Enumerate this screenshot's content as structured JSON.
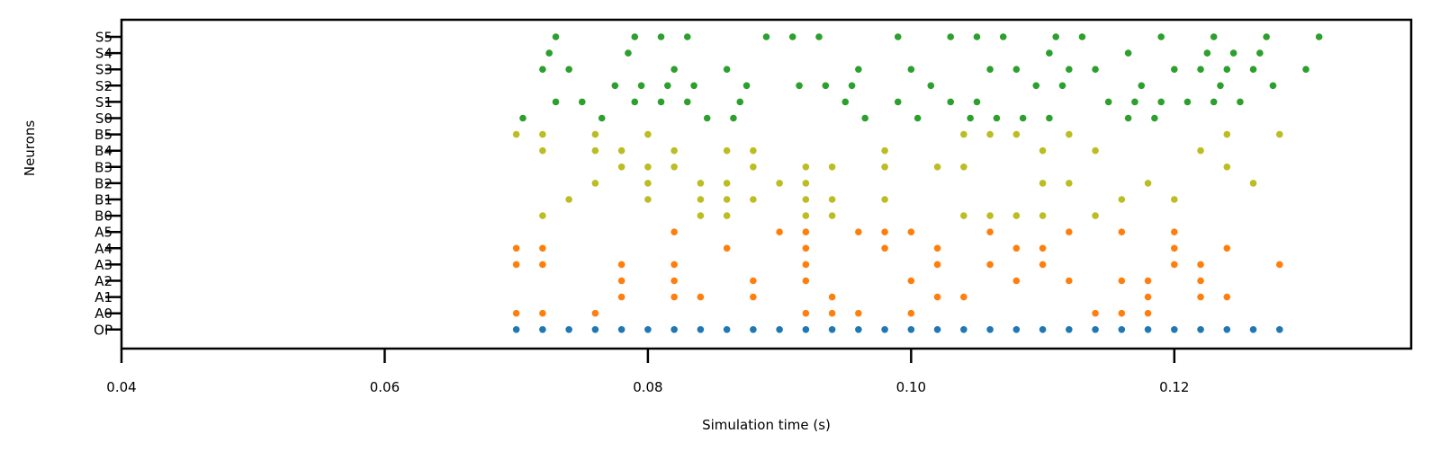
{
  "chart_data": {
    "type": "scatter",
    "title": "",
    "xlabel": "Simulation time (s)",
    "ylabel": "Neurons",
    "xlim": [
      0.04,
      0.138
    ],
    "xticks": [
      0.04,
      0.06,
      0.08,
      0.1,
      0.12
    ],
    "xtick_labels": [
      "0.04",
      "0.06",
      "0.08",
      "0.10",
      "0.12"
    ],
    "grid": false,
    "categories": [
      "OP",
      "A0",
      "A1",
      "A2",
      "A3",
      "A4",
      "A5",
      "B0",
      "B1",
      "B2",
      "B3",
      "B4",
      "B5",
      "S0",
      "S1",
      "S2",
      "S3",
      "S4",
      "S5"
    ],
    "colors": {
      "OP": "#1f77b4",
      "A": "#ff7f0e",
      "B": "#bcbd22",
      "S": "#2ca02c"
    },
    "spikes": {
      "OP": [
        0.07,
        0.072,
        0.074,
        0.076,
        0.078,
        0.08,
        0.082,
        0.084,
        0.086,
        0.088,
        0.09,
        0.092,
        0.094,
        0.096,
        0.098,
        0.1,
        0.102,
        0.104,
        0.106,
        0.108,
        0.11,
        0.112,
        0.114,
        0.116,
        0.118,
        0.12,
        0.122,
        0.124,
        0.126,
        0.128
      ],
      "A0": [
        0.07,
        0.072,
        0.076,
        0.092,
        0.094,
        0.096,
        0.1,
        0.114,
        0.116,
        0.118
      ],
      "A1": [
        0.078,
        0.082,
        0.084,
        0.088,
        0.094,
        0.102,
        0.104,
        0.118,
        0.122,
        0.124
      ],
      "A2": [
        0.078,
        0.082,
        0.088,
        0.092,
        0.1,
        0.108,
        0.112,
        0.116,
        0.118,
        0.122
      ],
      "A3": [
        0.07,
        0.072,
        0.078,
        0.082,
        0.092,
        0.102,
        0.106,
        0.11,
        0.12,
        0.122,
        0.128
      ],
      "A4": [
        0.07,
        0.072,
        0.086,
        0.092,
        0.098,
        0.102,
        0.108,
        0.11,
        0.12,
        0.124
      ],
      "A5": [
        0.082,
        0.09,
        0.092,
        0.096,
        0.098,
        0.1,
        0.106,
        0.112,
        0.116,
        0.12
      ],
      "B0": [
        0.072,
        0.084,
        0.086,
        0.092,
        0.094,
        0.104,
        0.106,
        0.108,
        0.11,
        0.114
      ],
      "B1": [
        0.074,
        0.08,
        0.084,
        0.086,
        0.088,
        0.092,
        0.094,
        0.098,
        0.116,
        0.12
      ],
      "B2": [
        0.076,
        0.08,
        0.084,
        0.086,
        0.09,
        0.092,
        0.11,
        0.112,
        0.118,
        0.126
      ],
      "B3": [
        0.078,
        0.08,
        0.082,
        0.088,
        0.092,
        0.094,
        0.098,
        0.102,
        0.104,
        0.124
      ],
      "B4": [
        0.072,
        0.076,
        0.078,
        0.082,
        0.086,
        0.088,
        0.098,
        0.11,
        0.114,
        0.122
      ],
      "B5": [
        0.07,
        0.072,
        0.076,
        0.08,
        0.104,
        0.106,
        0.108,
        0.112,
        0.124,
        0.128
      ],
      "S0": [
        0.0705,
        0.0765,
        0.0845,
        0.0865,
        0.0965,
        0.1005,
        0.1045,
        0.1065,
        0.1085,
        0.1105,
        0.1165,
        0.1185
      ],
      "S1": [
        0.073,
        0.075,
        0.079,
        0.081,
        0.083,
        0.087,
        0.095,
        0.099,
        0.103,
        0.105,
        0.115,
        0.117,
        0.119,
        0.121,
        0.123,
        0.125
      ],
      "S2": [
        0.0775,
        0.0795,
        0.0815,
        0.0835,
        0.0875,
        0.0915,
        0.0935,
        0.0955,
        0.1015,
        0.1095,
        0.1115,
        0.1175,
        0.1235,
        0.1275
      ],
      "S3": [
        0.072,
        0.074,
        0.082,
        0.086,
        0.096,
        0.1,
        0.106,
        0.108,
        0.112,
        0.114,
        0.12,
        0.122,
        0.124,
        0.126,
        0.13
      ],
      "S4": [
        0.0725,
        0.0785,
        0.1105,
        0.1165,
        0.1225,
        0.1245,
        0.1265
      ],
      "S5": [
        0.073,
        0.079,
        0.081,
        0.083,
        0.089,
        0.091,
        0.093,
        0.099,
        0.103,
        0.105,
        0.107,
        0.111,
        0.113,
        0.119,
        0.123,
        0.127,
        0.131
      ]
    }
  }
}
